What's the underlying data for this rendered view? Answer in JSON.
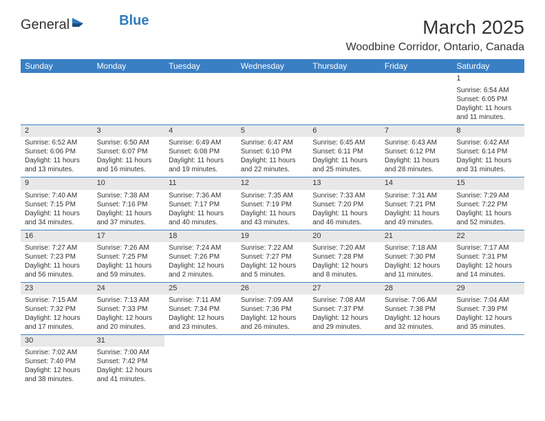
{
  "logo": {
    "text1": "General",
    "text2": "Blue"
  },
  "title": "March 2025",
  "location": "Woodbine Corridor, Ontario, Canada",
  "colors": {
    "header_bg": "#3a7fc4",
    "header_fg": "#ffffff",
    "daynum_bg": "#e8e8e8",
    "text": "#333333",
    "rule": "#3a7fc4",
    "logo_blue": "#2f7bbf"
  },
  "weekdays": [
    "Sunday",
    "Monday",
    "Tuesday",
    "Wednesday",
    "Thursday",
    "Friday",
    "Saturday"
  ],
  "first_weekday_index": 6,
  "days": [
    {
      "n": 1,
      "sunrise": "6:54 AM",
      "sunset": "6:05 PM",
      "daylight": "11 hours and 11 minutes."
    },
    {
      "n": 2,
      "sunrise": "6:52 AM",
      "sunset": "6:06 PM",
      "daylight": "11 hours and 13 minutes."
    },
    {
      "n": 3,
      "sunrise": "6:50 AM",
      "sunset": "6:07 PM",
      "daylight": "11 hours and 16 minutes."
    },
    {
      "n": 4,
      "sunrise": "6:49 AM",
      "sunset": "6:08 PM",
      "daylight": "11 hours and 19 minutes."
    },
    {
      "n": 5,
      "sunrise": "6:47 AM",
      "sunset": "6:10 PM",
      "daylight": "11 hours and 22 minutes."
    },
    {
      "n": 6,
      "sunrise": "6:45 AM",
      "sunset": "6:11 PM",
      "daylight": "11 hours and 25 minutes."
    },
    {
      "n": 7,
      "sunrise": "6:43 AM",
      "sunset": "6:12 PM",
      "daylight": "11 hours and 28 minutes."
    },
    {
      "n": 8,
      "sunrise": "6:42 AM",
      "sunset": "6:14 PM",
      "daylight": "11 hours and 31 minutes."
    },
    {
      "n": 9,
      "sunrise": "7:40 AM",
      "sunset": "7:15 PM",
      "daylight": "11 hours and 34 minutes."
    },
    {
      "n": 10,
      "sunrise": "7:38 AM",
      "sunset": "7:16 PM",
      "daylight": "11 hours and 37 minutes."
    },
    {
      "n": 11,
      "sunrise": "7:36 AM",
      "sunset": "7:17 PM",
      "daylight": "11 hours and 40 minutes."
    },
    {
      "n": 12,
      "sunrise": "7:35 AM",
      "sunset": "7:19 PM",
      "daylight": "11 hours and 43 minutes."
    },
    {
      "n": 13,
      "sunrise": "7:33 AM",
      "sunset": "7:20 PM",
      "daylight": "11 hours and 46 minutes."
    },
    {
      "n": 14,
      "sunrise": "7:31 AM",
      "sunset": "7:21 PM",
      "daylight": "11 hours and 49 minutes."
    },
    {
      "n": 15,
      "sunrise": "7:29 AM",
      "sunset": "7:22 PM",
      "daylight": "11 hours and 52 minutes."
    },
    {
      "n": 16,
      "sunrise": "7:27 AM",
      "sunset": "7:23 PM",
      "daylight": "11 hours and 56 minutes."
    },
    {
      "n": 17,
      "sunrise": "7:26 AM",
      "sunset": "7:25 PM",
      "daylight": "11 hours and 59 minutes."
    },
    {
      "n": 18,
      "sunrise": "7:24 AM",
      "sunset": "7:26 PM",
      "daylight": "12 hours and 2 minutes."
    },
    {
      "n": 19,
      "sunrise": "7:22 AM",
      "sunset": "7:27 PM",
      "daylight": "12 hours and 5 minutes."
    },
    {
      "n": 20,
      "sunrise": "7:20 AM",
      "sunset": "7:28 PM",
      "daylight": "12 hours and 8 minutes."
    },
    {
      "n": 21,
      "sunrise": "7:18 AM",
      "sunset": "7:30 PM",
      "daylight": "12 hours and 11 minutes."
    },
    {
      "n": 22,
      "sunrise": "7:17 AM",
      "sunset": "7:31 PM",
      "daylight": "12 hours and 14 minutes."
    },
    {
      "n": 23,
      "sunrise": "7:15 AM",
      "sunset": "7:32 PM",
      "daylight": "12 hours and 17 minutes."
    },
    {
      "n": 24,
      "sunrise": "7:13 AM",
      "sunset": "7:33 PM",
      "daylight": "12 hours and 20 minutes."
    },
    {
      "n": 25,
      "sunrise": "7:11 AM",
      "sunset": "7:34 PM",
      "daylight": "12 hours and 23 minutes."
    },
    {
      "n": 26,
      "sunrise": "7:09 AM",
      "sunset": "7:36 PM",
      "daylight": "12 hours and 26 minutes."
    },
    {
      "n": 27,
      "sunrise": "7:08 AM",
      "sunset": "7:37 PM",
      "daylight": "12 hours and 29 minutes."
    },
    {
      "n": 28,
      "sunrise": "7:06 AM",
      "sunset": "7:38 PM",
      "daylight": "12 hours and 32 minutes."
    },
    {
      "n": 29,
      "sunrise": "7:04 AM",
      "sunset": "7:39 PM",
      "daylight": "12 hours and 35 minutes."
    },
    {
      "n": 30,
      "sunrise": "7:02 AM",
      "sunset": "7:40 PM",
      "daylight": "12 hours and 38 minutes."
    },
    {
      "n": 31,
      "sunrise": "7:00 AM",
      "sunset": "7:42 PM",
      "daylight": "12 hours and 41 minutes."
    }
  ],
  "labels": {
    "sunrise": "Sunrise:",
    "sunset": "Sunset:",
    "daylight": "Daylight:"
  }
}
